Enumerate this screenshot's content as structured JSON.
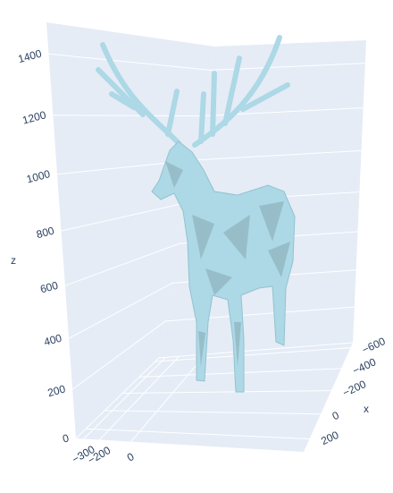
{
  "chart_data": {
    "type": "mesh3d",
    "color": "#add8e6",
    "xaxis_title": "x",
    "zaxis_title": "z",
    "xlim": [
      -650,
      300
    ],
    "xticks": [
      {
        "value": -600,
        "label": "−600"
      },
      {
        "value": -400,
        "label": "−400"
      },
      {
        "value": -200,
        "label": "−200"
      },
      0,
      200
    ],
    "ylim": [
      -350,
      1100
    ],
    "yticks": [
      {
        "value": -300,
        "label": "−300"
      },
      {
        "value": -200,
        "label": "−200"
      },
      0
    ],
    "zlim": [
      0,
      1500
    ],
    "zticks": [
      0,
      200,
      400,
      600,
      800,
      1000,
      1200,
      1400
    ],
    "grid": true
  }
}
